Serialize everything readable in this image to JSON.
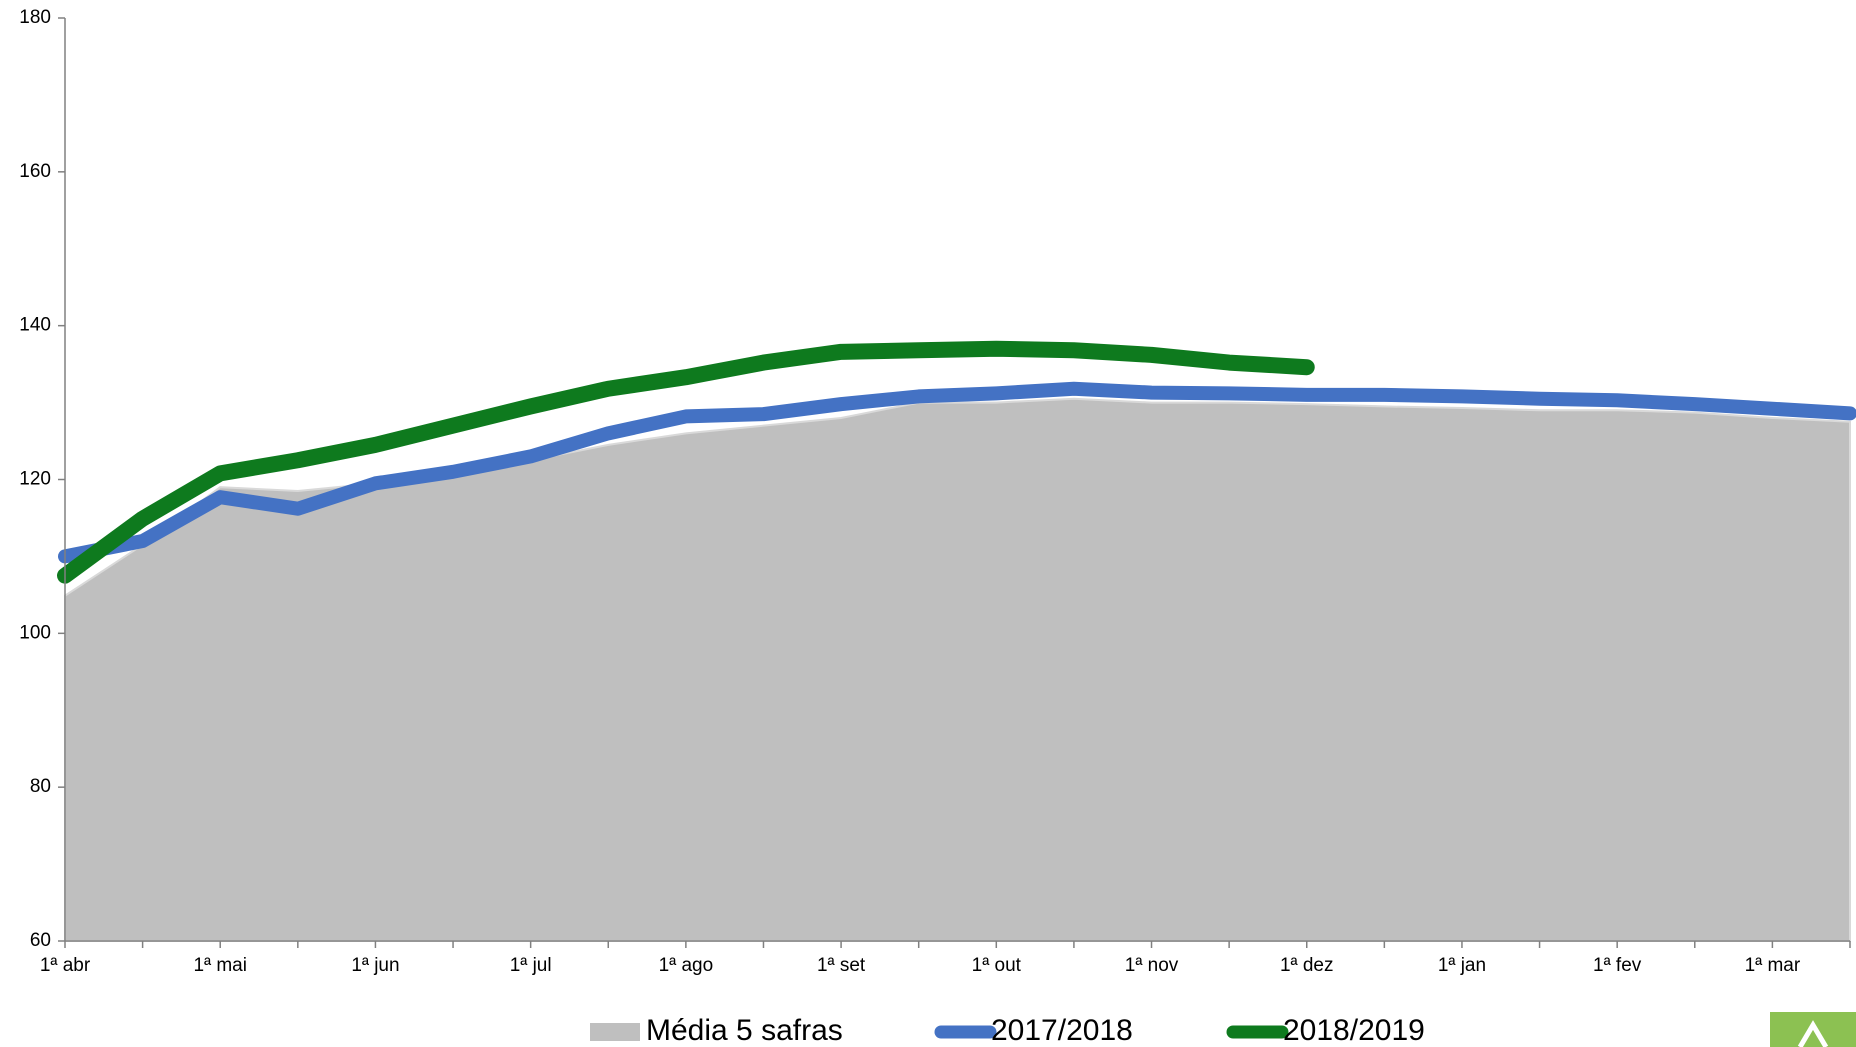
{
  "chart_data": {
    "type": "line",
    "categories": [
      "1ª abr",
      null,
      "1ª mai",
      null,
      "1ª jun",
      null,
      "1ª jul",
      null,
      "1ª ago",
      null,
      "1ª set",
      null,
      "1ª out",
      null,
      "1ª nov",
      null,
      "1ª dez",
      null,
      "1ª jan",
      null,
      "1ª fev",
      null,
      "1ª mar",
      null
    ],
    "series": [
      {
        "name": "Média 5 safras",
        "kind": "area",
        "color": "#bfbfbf",
        "values": [
          104.9,
          111.5,
          119,
          118.5,
          119.5,
          121,
          122.5,
          124.5,
          126,
          127,
          128,
          130,
          130,
          130.5,
          130,
          130,
          129.8,
          129.5,
          129.3,
          129,
          129,
          128.7,
          128,
          127.5
        ]
      },
      {
        "name": "2017/2018",
        "kind": "line",
        "color": "#4472c4",
        "values": [
          110,
          112,
          117.7,
          116.2,
          119.5,
          121,
          123,
          126,
          128.2,
          128.5,
          129.8,
          130.8,
          131.2,
          131.8,
          131.3,
          131.2,
          131,
          131,
          130.8,
          130.5,
          130.3,
          129.8,
          129.2,
          128.6
        ]
      },
      {
        "name": "2018/2019",
        "kind": "line",
        "color": "#0e7a1e",
        "values": [
          107.5,
          114.9,
          120.8,
          122.5,
          124.5,
          127,
          129.5,
          131.8,
          133.3,
          135.2,
          136.6,
          136.8,
          137,
          136.8,
          136.2,
          135.2,
          134.6,
          null,
          null,
          null,
          null,
          null,
          null,
          null
        ]
      }
    ],
    "ylim": [
      60,
      180
    ],
    "yticks": [
      60,
      80,
      100,
      120,
      140,
      160,
      180
    ],
    "legend": "bottom"
  }
}
